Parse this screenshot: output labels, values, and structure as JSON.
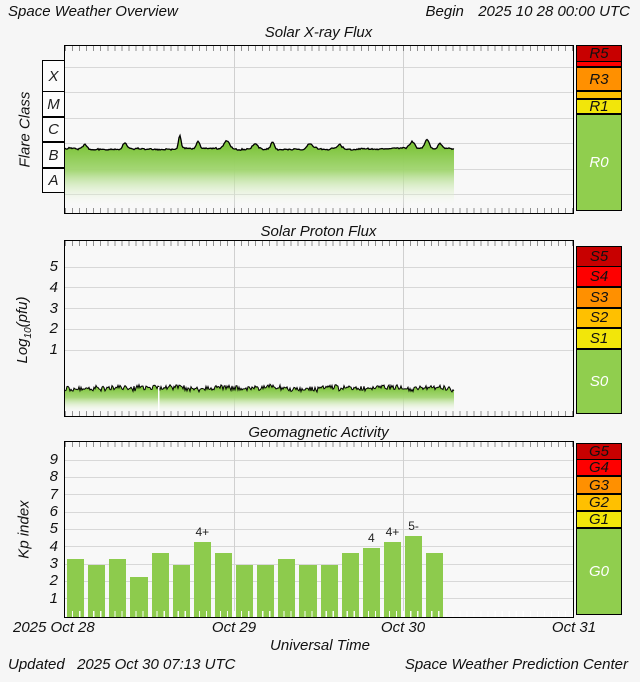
{
  "header": {
    "title": "Space Weather Overview",
    "begin_label": "Begin",
    "begin_value": "2025 10 28 00:00 UTC"
  },
  "panels": {
    "xray": {
      "title": "Solar X-ray Flux",
      "y_axis_label": "Flare Class",
      "class_bands": [
        "X",
        "M",
        "C",
        "B",
        "A"
      ],
      "right_scale_labels": [
        "R5",
        "",
        "R3",
        "",
        "R1",
        "R0"
      ]
    },
    "proton": {
      "title": "Solar Proton Flux",
      "y_label_prefix": "Log",
      "y_label_sub": "10",
      "y_label_suffix": "(pfu)",
      "ytick_labels": [
        "5",
        "4",
        "3",
        "2",
        "1"
      ],
      "right_scale_labels": [
        "S5",
        "S4",
        "S3",
        "S2",
        "S1",
        "S0"
      ]
    },
    "kp": {
      "title": "Geomagnetic Activity",
      "y_axis_label": "Kp index",
      "ytick_labels": [
        "9",
        "8",
        "7",
        "6",
        "5",
        "4",
        "3",
        "2",
        "1"
      ],
      "right_scale_labels": [
        "G5",
        "G4",
        "G3",
        "G2",
        "G1",
        "G0"
      ]
    }
  },
  "x_axis": {
    "tick_labels": [
      "2025 Oct 28",
      "Oct 29",
      "Oct 30",
      "Oct 31"
    ],
    "title": "Universal Time"
  },
  "footer": {
    "updated_label": "Updated",
    "updated_value": "2025 Oct 30 07:13 UTC",
    "credit": "Space Weather Prediction Center"
  },
  "colors": {
    "level5": "#c80000",
    "level4": "#fe0000",
    "level3": "#ff9000",
    "level2": "#ffc000",
    "level1": "#f2e60a",
    "level0": "#90ce4e",
    "trace_fill_green": "#7ec43c",
    "bar_green": "#8dcb4d",
    "line_black": "#000000"
  },
  "chart_data": [
    {
      "type": "area",
      "title": "Solar X-ray Flux",
      "xlabel": "Universal Time",
      "ylabel": "Flare Class",
      "x_unit": "hours since 2025-10-28 00:00 UTC",
      "x_range": [
        0,
        55.2
      ],
      "y_bands_bottom_to_top": [
        "A",
        "B",
        "C",
        "M",
        "X"
      ],
      "baseline_log_flux": -6.21,
      "baseline_log_flux_after_hour48": -6.18,
      "flare_spikes_hour_logpeak_width": [
        [
          2.8,
          -6.02,
          0.3
        ],
        [
          8.5,
          -5.98,
          0.3
        ],
        [
          16.3,
          -5.66,
          0.18
        ],
        [
          18.9,
          -5.94,
          0.23
        ],
        [
          23.0,
          -5.88,
          0.42
        ],
        [
          27.0,
          -6.02,
          0.3
        ],
        [
          29.5,
          -5.93,
          0.23
        ],
        [
          34.8,
          -5.98,
          0.42
        ],
        [
          39.0,
          -6.05,
          0.36
        ],
        [
          49.3,
          -5.93,
          0.36
        ],
        [
          51.4,
          -5.86,
          0.3
        ],
        [
          53.3,
          -6.0,
          0.3
        ]
      ],
      "right_scale": [
        "R0",
        "R1",
        "R3",
        "R5"
      ],
      "grid": true,
      "legend": false
    },
    {
      "type": "area",
      "title": "Solar Proton Flux",
      "xlabel": "Universal Time",
      "ylabel": "Log10(pfu)",
      "x_unit": "hours since 2025-10-28 00:00 UTC",
      "x_range": [
        0,
        55.2
      ],
      "ytick_values": [
        1,
        2,
        3,
        4,
        5
      ],
      "baseline_log_pfu": -0.85,
      "noise_log_amplitude": 0.12,
      "data_gap_hour": 13.2,
      "right_scale": [
        "S0",
        "S1",
        "S2",
        "S3",
        "S4",
        "S5"
      ],
      "grid": true,
      "legend": false
    },
    {
      "type": "bar",
      "title": "Geomagnetic Activity",
      "xlabel": "Universal Time",
      "ylabel": "Kp index",
      "start": "2025 Oct 28 00:00 UTC",
      "bar_duration_hours": 3,
      "ytick_values": [
        1,
        2,
        3,
        4,
        5,
        6,
        7,
        8,
        9
      ],
      "values": [
        3.33,
        3,
        3.33,
        2.33,
        3.67,
        3,
        4.33,
        3.67,
        3,
        3,
        3.33,
        3,
        3,
        3.67,
        4,
        4.33,
        4.67,
        3.67
      ],
      "kp_names": [
        "3+",
        "3",
        "3+",
        "2+",
        "4-",
        "3",
        "4+",
        "4-",
        "3",
        "3",
        "3+",
        "3",
        "3",
        "4-",
        "4",
        "4+",
        "5-",
        "4-"
      ],
      "annotations": [
        {
          "bar_index": 6,
          "text": "4+"
        },
        {
          "bar_index": 14,
          "text": "4"
        },
        {
          "bar_index": 15,
          "text": "4+"
        },
        {
          "bar_index": 16,
          "text": "5-"
        }
      ],
      "right_scale": [
        "G0",
        "G1",
        "G2",
        "G3",
        "G4",
        "G5"
      ],
      "grid": true,
      "legend": false
    }
  ]
}
